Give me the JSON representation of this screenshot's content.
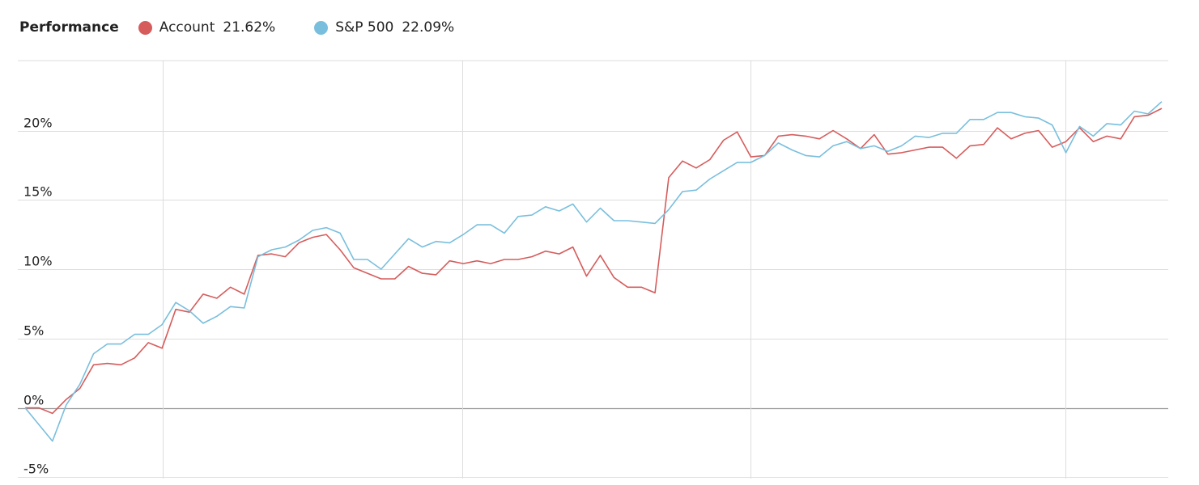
{
  "legend": {
    "title": "Performance",
    "series": [
      {
        "name": "Account",
        "value": "21.62%",
        "color": "#d65c5c"
      },
      {
        "name": "S&P 500",
        "value": "22.09%",
        "color": "#79bfdd"
      }
    ]
  },
  "chart_data": {
    "type": "line",
    "title": "Performance",
    "xlabel": "",
    "ylabel": "",
    "ylim": [
      -5,
      25
    ],
    "yticks": [
      -5,
      0,
      5,
      10,
      15,
      20
    ],
    "ytick_labels": [
      "-5%",
      "0%",
      "5%",
      "10%",
      "15%",
      "20%"
    ],
    "grid": true,
    "legend_position": "top-left",
    "series": [
      {
        "name": "Account",
        "color": "#d65c5c",
        "values": [
          0.0,
          0.0,
          -0.4,
          0.6,
          1.4,
          3.1,
          3.2,
          3.1,
          3.6,
          4.7,
          4.3,
          7.1,
          6.9,
          8.2,
          7.9,
          8.7,
          8.2,
          11.0,
          11.1,
          10.9,
          11.9,
          12.3,
          12.5,
          11.4,
          10.1,
          9.7,
          9.3,
          9.3,
          10.2,
          9.7,
          9.6,
          10.6,
          10.4,
          10.6,
          10.4,
          10.7,
          10.7,
          10.9,
          11.3,
          11.1,
          11.6,
          9.5,
          11.0,
          9.4,
          8.7,
          8.7,
          8.3,
          16.6,
          17.8,
          17.3,
          17.9,
          19.3,
          19.9,
          18.1,
          18.2,
          19.6,
          19.7,
          19.6,
          19.4,
          20.0,
          19.4,
          18.7,
          19.7,
          18.3,
          18.4,
          18.6,
          18.8,
          18.8,
          18.0,
          18.9,
          19.0,
          20.2,
          19.4,
          19.8,
          20.0,
          18.8,
          19.2,
          20.2,
          19.2,
          19.6,
          19.4,
          21.0,
          21.1,
          21.6
        ]
      },
      {
        "name": "S&P 500",
        "color": "#79bfdd",
        "values": [
          0.0,
          -1.2,
          -2.4,
          0.2,
          1.7,
          3.9,
          4.6,
          4.6,
          5.3,
          5.3,
          6.0,
          7.6,
          7.0,
          6.1,
          6.6,
          7.3,
          7.2,
          10.9,
          11.4,
          11.6,
          12.1,
          12.8,
          13.0,
          12.6,
          10.7,
          10.7,
          10.0,
          11.1,
          12.2,
          11.6,
          12.0,
          11.9,
          12.5,
          13.2,
          13.2,
          12.6,
          13.8,
          13.9,
          14.5,
          14.2,
          14.7,
          13.4,
          14.4,
          13.5,
          13.5,
          13.4,
          13.3,
          14.3,
          15.6,
          15.7,
          16.5,
          17.1,
          17.7,
          17.7,
          18.2,
          19.1,
          18.6,
          18.2,
          18.1,
          18.9,
          19.2,
          18.7,
          18.9,
          18.5,
          18.9,
          19.6,
          19.5,
          19.8,
          19.8,
          20.8,
          20.8,
          21.3,
          21.3,
          21.0,
          20.9,
          20.4,
          18.4,
          20.3,
          19.6,
          20.5,
          20.4,
          21.4,
          21.2,
          22.09
        ]
      }
    ]
  }
}
